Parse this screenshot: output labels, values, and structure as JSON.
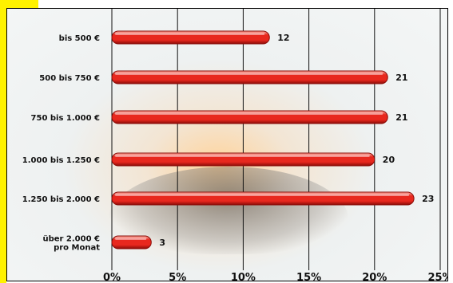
{
  "chart_data": {
    "type": "bar",
    "orientation": "horizontal",
    "categories": [
      [
        "bis 500 €"
      ],
      [
        "500 bis 750 €"
      ],
      [
        "750 bis 1.000 €"
      ],
      [
        "1.000 bis 1.250 €"
      ],
      [
        "1.250 bis 2.000 €"
      ],
      [
        "über 2.000 €",
        "pro Monat"
      ]
    ],
    "values": [
      12,
      21,
      21,
      20,
      23,
      3
    ],
    "value_labels": [
      "12",
      "21",
      "21",
      "20",
      "23",
      "3"
    ],
    "x_ticks": [
      "0%",
      "5%",
      "10%",
      "15%",
      "20%",
      "25%"
    ],
    "xlim": [
      0,
      25
    ],
    "grid": true,
    "bar_color": "#e8281e",
    "bar_dark": "#8a0c08",
    "bar_highlight": "#ffb3a6"
  }
}
